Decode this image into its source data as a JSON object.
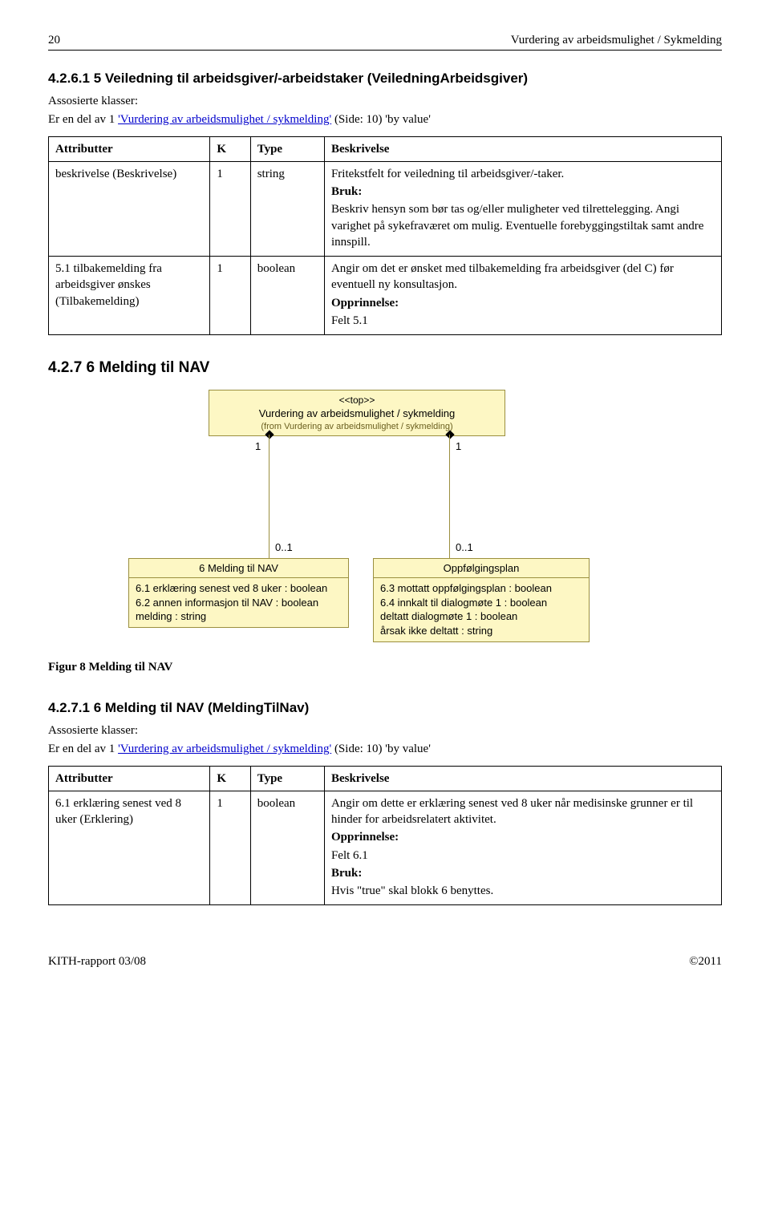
{
  "header": {
    "page": "20",
    "title": "Vurdering av arbeidsmulighet / Sykmelding"
  },
  "sec1": {
    "heading": "4.2.6.1  5 Veiledning til arbeidsgiver/-arbeidstaker (VeiledningArbeidsgiver)",
    "assoc_label": "Assosierte klasser:",
    "assoc_pre": "Er en del av 1 ",
    "assoc_link": "'Vurdering av arbeidsmulighet / sykmelding'",
    "assoc_post": " (Side: 10) 'by value'",
    "th": {
      "a": "Attributter",
      "k": "K",
      "t": "Type",
      "b": "Beskrivelse"
    },
    "rows": [
      {
        "a": "beskrivelse (Beskrivelse)",
        "k": "1",
        "t": "string",
        "d1": "Fritekstfelt for veiledning til arbeidsgiver/-taker.",
        "bruk": "Bruk:",
        "d2": "Beskriv hensyn som bør tas og/eller muligheter ved tilrettelegging. Angi varighet på sykefraværet om mulig. Eventuelle forebyggingstiltak samt andre innspill."
      },
      {
        "a": "5.1 tilbakemelding fra arbeidsgiver ønskes (Tilbakemelding)",
        "k": "1",
        "t": "boolean",
        "d1": "Angir om det er ønsket med tilbakemelding fra arbeidsgiver (del C) før eventuell ny konsultasjon.",
        "opp": "Opprinnelse:",
        "d2": "Felt 5.1"
      }
    ]
  },
  "sec2": {
    "heading": "4.2.7  6 Melding til NAV"
  },
  "uml": {
    "top_stereo": "<<top>>",
    "top_name": "Vurdering av arbeidsmulighet / sykmelding",
    "top_from": "(from Vurdering av arbeidsmulighet / sykmelding)",
    "m1": "1",
    "m2": "1",
    "m3": "0..1",
    "m4": "0..1",
    "left_title": "6 Melding til NAV",
    "left_attrs": [
      "6.1 erklæring senest ved 8 uker : boolean",
      "6.2 annen informasjon til NAV : boolean",
      "melding : string"
    ],
    "right_title": "Oppfølgingsplan",
    "right_attrs": [
      "6.3 mottatt oppfølgingsplan : boolean",
      "6.4 innkalt til dialogmøte 1 : boolean",
      "deltatt dialogmøte 1 : boolean",
      "årsak ikke deltatt : string"
    ]
  },
  "fig_caption": "Figur 8 Melding til NAV",
  "sec3": {
    "heading": "4.2.7.1  6 Melding til NAV (MeldingTilNav)",
    "assoc_label": "Assosierte klasser:",
    "assoc_pre": "Er en del av 1 ",
    "assoc_link": "'Vurdering av arbeidsmulighet / sykmelding'",
    "assoc_post": " (Side: 10) 'by value'",
    "th": {
      "a": "Attributter",
      "k": "K",
      "t": "Type",
      "b": "Beskrivelse"
    },
    "row": {
      "a": "6.1 erklæring senest ved 8 uker (Erklering)",
      "k": "1",
      "t": "boolean",
      "d1": "Angir om dette er erklæring senest ved 8 uker når medisinske grunner er til hinder for arbeidsrelatert aktivitet.",
      "opp": "Opprinnelse:",
      "d2": "Felt 6.1",
      "bruk": "Bruk:",
      "d3": "Hvis \"true\" skal blokk 6 benyttes."
    }
  },
  "footer": {
    "left": "KITH-rapport 03/08",
    "right": "©2011"
  }
}
